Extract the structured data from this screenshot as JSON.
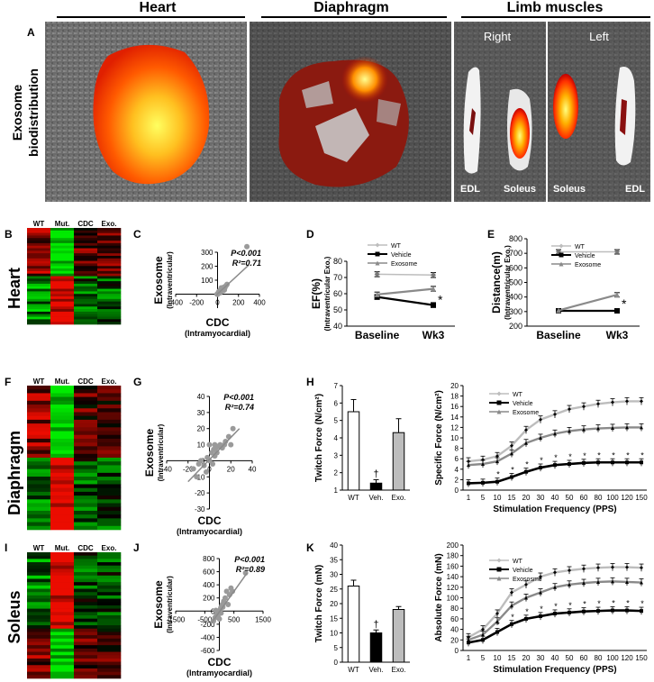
{
  "colors": {
    "wt": "#bdbdbd",
    "vehicle": "#000000",
    "exosome": "#8a8a8a",
    "red": "#d40000",
    "green": "#00d800"
  },
  "panel_letters": {
    "A": "A",
    "B": "B",
    "C": "C",
    "D": "D",
    "E": "E",
    "F": "F",
    "G": "G",
    "H": "H",
    "I": "I",
    "J": "J",
    "K": "K"
  },
  "headers": {
    "heart": "Heart",
    "diaphragm": "Diaphragm",
    "limb": "Limb muscles",
    "right": "Right",
    "left": "Left"
  },
  "side_label": {
    "line1": "Exosome",
    "line2": "biodistribution"
  },
  "row_labels": {
    "heart": "Heart",
    "diaphragm": "Diaphragm",
    "soleus": "Soleus"
  },
  "muscle_labels": {
    "edl1": "EDL",
    "soleus1": "Soleus",
    "soleus2": "Soleus",
    "edl2": "EDL"
  },
  "heatmap_cols": [
    "WT",
    "Mut.",
    "CDC",
    "Exo."
  ],
  "scatter_common": {
    "ylabel": "Exosome",
    "ysub": "(Intraventricular)",
    "xlabel": "CDC",
    "xsub": "(Intramyocardial)"
  },
  "chart_data": [
    {
      "id": "C",
      "type": "scatter",
      "stats": [
        "P<0.001",
        "R²=0.71"
      ],
      "xlim": [
        -400,
        400
      ],
      "ylim": [
        -100,
        300
      ],
      "xticks": [
        -400,
        -200,
        0,
        200,
        400
      ],
      "yticks": [
        100,
        200,
        300
      ],
      "points": [
        [
          -5,
          0
        ],
        [
          0,
          -2
        ],
        [
          5,
          5
        ],
        [
          10,
          15
        ],
        [
          20,
          25
        ],
        [
          30,
          20
        ],
        [
          40,
          40
        ],
        [
          50,
          35
        ],
        [
          60,
          50
        ],
        [
          70,
          45
        ],
        [
          80,
          60
        ],
        [
          25,
          10
        ],
        [
          45,
          30
        ],
        [
          55,
          25
        ],
        [
          35,
          45
        ],
        [
          65,
          30
        ],
        [
          15,
          20
        ],
        [
          90,
          70
        ],
        [
          280,
          340
        ]
      ],
      "fit": [
        [
          -10,
          -5
        ],
        [
          300,
          210
        ]
      ]
    },
    {
      "id": "D",
      "type": "line",
      "title": "",
      "ylabel": "EF(%)",
      "ysub": "(Intraventricular Exo.)",
      "categories": [
        "Baseline",
        "Wk3"
      ],
      "ylim": [
        40,
        80
      ],
      "yticks": [
        40,
        50,
        60,
        70,
        80
      ],
      "legend": [
        "WT",
        "Vehicle",
        "Exosome"
      ],
      "series": [
        {
          "name": "WT",
          "values": [
            72,
            71.5
          ],
          "err": [
            1.5,
            1.5
          ]
        },
        {
          "name": "Vehicle",
          "values": [
            58,
            53
          ],
          "err": [
            1.5,
            1.5
          ]
        },
        {
          "name": "Exosome",
          "values": [
            59.5,
            63
          ],
          "err": [
            1.5,
            1.5
          ]
        }
      ],
      "annotations": [
        "*"
      ]
    },
    {
      "id": "E",
      "type": "line",
      "title": "",
      "ylabel": "Distance(m)",
      "ysub": "(Intraventricular Exo.)",
      "categories": [
        "Baseline",
        "Wk3"
      ],
      "ylim": [
        200,
        800
      ],
      "yticks": [
        200,
        300,
        400,
        500,
        600,
        700,
        800
      ],
      "legend": [
        "WT",
        "Vehicle",
        "Exosome"
      ],
      "series": [
        {
          "name": "WT",
          "values": [
            710,
            710
          ],
          "err": [
            15,
            15
          ]
        },
        {
          "name": "Vehicle",
          "values": [
            305,
            305
          ],
          "err": [
            10,
            10
          ]
        },
        {
          "name": "Exosome",
          "values": [
            308,
            415
          ],
          "err": [
            10,
            15
          ]
        }
      ],
      "annotations": [
        "*"
      ]
    },
    {
      "id": "G",
      "type": "scatter",
      "stats": [
        "P<0.001",
        "R²=0.74"
      ],
      "xlim": [
        -40,
        40
      ],
      "ylim": [
        -30,
        40
      ],
      "xticks": [
        -40,
        -20,
        0,
        20,
        40
      ],
      "yticks": [
        -30,
        -20,
        -10,
        0,
        10,
        20,
        30,
        40
      ],
      "points": [
        [
          -15,
          -5
        ],
        [
          -12,
          -10
        ],
        [
          -10,
          -2
        ],
        [
          -8,
          0
        ],
        [
          -5,
          -3
        ],
        [
          -3,
          -7
        ],
        [
          0,
          0
        ],
        [
          2,
          5
        ],
        [
          4,
          7
        ],
        [
          5,
          10
        ],
        [
          6,
          8
        ],
        [
          8,
          9
        ],
        [
          10,
          10
        ],
        [
          12,
          8
        ],
        [
          14,
          10
        ],
        [
          15,
          12
        ],
        [
          18,
          15
        ],
        [
          20,
          10
        ],
        [
          22,
          20
        ],
        [
          5,
          3
        ],
        [
          3,
          -2
        ],
        [
          -2,
          2
        ],
        [
          0,
          10
        ],
        [
          7,
          5
        ]
      ],
      "fit": [
        [
          -20,
          -13
        ],
        [
          28,
          20
        ]
      ]
    },
    {
      "id": "H1",
      "type": "bar",
      "ylabel": "Twitch Force (N/cm²)",
      "categories": [
        "WT",
        "Veh.",
        "Exo."
      ],
      "values": [
        5.5,
        1.4,
        4.3
      ],
      "err": [
        0.7,
        0.2,
        0.8
      ],
      "ylim": [
        1,
        7
      ],
      "yticks": [
        1,
        2,
        3,
        4,
        5,
        6,
        7
      ],
      "annotations": [
        "†"
      ]
    },
    {
      "id": "H2",
      "type": "line",
      "ylabel": "Specific Force (N/cm²)",
      "xlabel": "Stimulation Frequency (PPS)",
      "categories": [
        "1",
        "5",
        "10",
        "15",
        "20",
        "30",
        "40",
        "50",
        "60",
        "80",
        "100",
        "120",
        "150"
      ],
      "ylim": [
        0,
        20
      ],
      "yticks": [
        0,
        2,
        4,
        6,
        8,
        10,
        12,
        14,
        16,
        18,
        20
      ],
      "legend": [
        "WT",
        "Vehicle",
        "Exosome"
      ],
      "series": [
        {
          "name": "WT",
          "values": [
            5.5,
            5.8,
            6.5,
            8.5,
            11.5,
            13.5,
            14.5,
            15.5,
            16,
            16.5,
            16.8,
            17,
            17
          ]
        },
        {
          "name": "Vehicle",
          "values": [
            1.3,
            1.4,
            1.6,
            2.5,
            3.5,
            4.3,
            4.8,
            5,
            5.2,
            5.3,
            5.3,
            5.3,
            5.3
          ]
        },
        {
          "name": "Exosome",
          "values": [
            4.8,
            5,
            5.5,
            7,
            9,
            10,
            10.8,
            11.3,
            11.6,
            11.8,
            11.9,
            12,
            12
          ]
        }
      ],
      "annotations": [
        "*"
      ]
    },
    {
      "id": "J",
      "type": "scatter",
      "stats": [
        "P<0.001",
        "R²=0.89"
      ],
      "xlim": [
        -1500,
        1500
      ],
      "ylim": [
        -600,
        800
      ],
      "xticks": [
        -1500,
        -500,
        500,
        1500
      ],
      "yticks": [
        -600,
        -400,
        -200,
        0,
        200,
        400,
        600,
        800
      ],
      "points": [
        [
          -200,
          -150
        ],
        [
          -150,
          -100
        ],
        [
          -100,
          -50
        ],
        [
          -80,
          0
        ],
        [
          -50,
          -80
        ],
        [
          0,
          0
        ],
        [
          30,
          20
        ],
        [
          50,
          50
        ],
        [
          80,
          80
        ],
        [
          100,
          100
        ],
        [
          120,
          60
        ],
        [
          150,
          150
        ],
        [
          200,
          200
        ],
        [
          250,
          300
        ],
        [
          300,
          100
        ],
        [
          350,
          250
        ],
        [
          400,
          350
        ],
        [
          450,
          300
        ],
        [
          900,
          580
        ],
        [
          0,
          -120
        ],
        [
          -120,
          10
        ],
        [
          60,
          -30
        ]
      ],
      "fit": [
        [
          -300,
          -200
        ],
        [
          950,
          580
        ]
      ]
    },
    {
      "id": "K1",
      "type": "bar",
      "ylabel": "Twitch Force (mN)",
      "categories": [
        "WT",
        "Veh.",
        "Exo."
      ],
      "values": [
        26,
        10,
        18
      ],
      "err": [
        2,
        1,
        1
      ],
      "ylim": [
        0,
        40
      ],
      "yticks": [
        0,
        5,
        10,
        15,
        20,
        25,
        30,
        35,
        40
      ],
      "annotations": [
        "†"
      ]
    },
    {
      "id": "K2",
      "type": "line",
      "ylabel": "Absolute Force (mN)",
      "xlabel": "Stimulation Frequency (PPS)",
      "categories": [
        "1",
        "5",
        "10",
        "15",
        "20",
        "30",
        "40",
        "50",
        "60",
        "80",
        "100",
        "120",
        "150"
      ],
      "ylim": [
        0,
        200
      ],
      "yticks": [
        0,
        20,
        40,
        60,
        80,
        100,
        120,
        140,
        160,
        180,
        200
      ],
      "legend": [
        "WT",
        "Vehicle",
        "Exososme"
      ],
      "series": [
        {
          "name": "WT",
          "values": [
            25,
            40,
            70,
            110,
            125,
            140,
            148,
            152,
            155,
            157,
            158,
            158,
            157
          ]
        },
        {
          "name": "Vehicle",
          "values": [
            15,
            20,
            35,
            50,
            60,
            65,
            70,
            72,
            74,
            75,
            76,
            76,
            75
          ]
        },
        {
          "name": "Exososme",
          "values": [
            20,
            30,
            55,
            85,
            100,
            110,
            120,
            125,
            128,
            130,
            131,
            130,
            129
          ]
        }
      ],
      "annotations": [
        "*"
      ]
    }
  ]
}
